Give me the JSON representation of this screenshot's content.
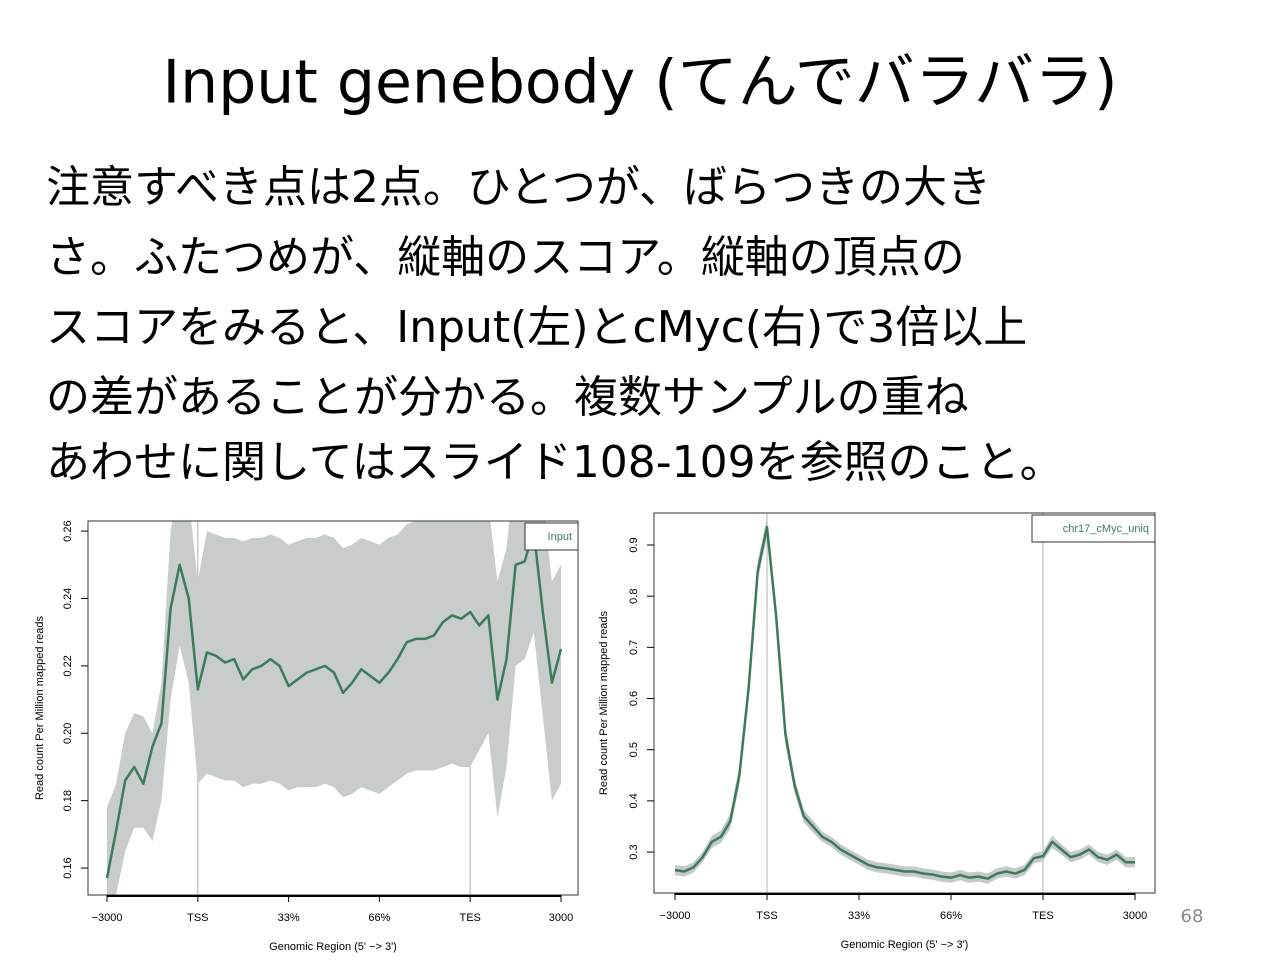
{
  "slide": {
    "title": "Input genebody (てんでバラバラ)",
    "body": [
      "注意すべき点は2点。ひとつが、ばらつきの大き",
      "さ。ふたつめが、縦軸のスコア。縦軸の頂点の",
      "スコアをみると、Input(左)とcMyc(右)で3倍以上",
      "の差があることが分かる。複数サンプルの重ね",
      "あわせに関してはスライド108-109を参照のこと。"
    ],
    "page_number": "68"
  },
  "chart_data": [
    {
      "type": "line",
      "x_label": "Genomic Region (5' −> 3')",
      "y_label": "Read count Per Million mapped reads",
      "categories": [
        "−3000",
        null,
        null,
        null,
        null,
        null,
        null,
        null,
        null,
        null,
        "TSS",
        null,
        null,
        null,
        null,
        null,
        null,
        null,
        null,
        null,
        "33%",
        null,
        null,
        null,
        null,
        null,
        null,
        null,
        null,
        null,
        "66%",
        null,
        null,
        null,
        null,
        null,
        null,
        null,
        null,
        null,
        "TES",
        null,
        null,
        null,
        null,
        null,
        null,
        null,
        null,
        null,
        "3000"
      ],
      "ylim": [
        0.152,
        0.263
      ],
      "yticks": [
        0.16,
        0.18,
        {
          "value": 0.2,
          "label": "0.20"
        },
        0.22,
        0.24,
        0.26
      ],
      "band_color": "#c8cdcb",
      "series": [
        {
          "name": "Input",
          "color": "#3d7a5c",
          "values": [
            0.157,
            0.171,
            0.186,
            0.19,
            0.185,
            0.196,
            0.203,
            0.237,
            0.25,
            0.24,
            0.213,
            0.224,
            0.223,
            0.221,
            0.222,
            0.216,
            0.219,
            0.22,
            0.222,
            0.22,
            0.214,
            0.216,
            0.218,
            0.219,
            0.22,
            0.218,
            0.212,
            0.215,
            0.219,
            0.217,
            0.215,
            0.218,
            0.222,
            0.227,
            0.228,
            0.228,
            0.229,
            0.233,
            0.235,
            0.234,
            0.236,
            0.232,
            0.235,
            0.21,
            0.222,
            0.25,
            0.251,
            0.26,
            0.236,
            0.215,
            0.225
          ],
          "lower": [
            0.15,
            0.152,
            0.165,
            0.172,
            0.172,
            0.168,
            0.18,
            0.21,
            0.226,
            0.215,
            0.185,
            0.188,
            0.187,
            0.186,
            0.186,
            0.184,
            0.185,
            0.185,
            0.186,
            0.185,
            0.183,
            0.184,
            0.184,
            0.184,
            0.185,
            0.184,
            0.181,
            0.182,
            0.184,
            0.183,
            0.182,
            0.184,
            0.186,
            0.188,
            0.189,
            0.189,
            0.189,
            0.19,
            0.191,
            0.19,
            0.19,
            0.195,
            0.2,
            0.175,
            0.19,
            0.22,
            0.222,
            0.23,
            0.205,
            0.18,
            0.185
          ],
          "upper": [
            0.178,
            0.185,
            0.2,
            0.206,
            0.205,
            0.2,
            0.215,
            0.26,
            0.275,
            0.27,
            0.245,
            0.26,
            0.259,
            0.258,
            0.258,
            0.257,
            0.258,
            0.258,
            0.259,
            0.258,
            0.256,
            0.257,
            0.258,
            0.258,
            0.259,
            0.258,
            0.255,
            0.256,
            0.258,
            0.257,
            0.256,
            0.258,
            0.259,
            0.262,
            0.263,
            0.263,
            0.264,
            0.266,
            0.268,
            0.267,
            0.275,
            0.265,
            0.268,
            0.245,
            0.255,
            0.28,
            0.282,
            0.29,
            0.27,
            0.245,
            0.25
          ]
        }
      ]
    },
    {
      "type": "line",
      "x_label": "Genomic Region (5' −> 3')",
      "y_label": "Read count Per Million mapped reads",
      "categories": [
        "−3000",
        null,
        null,
        null,
        null,
        null,
        null,
        null,
        null,
        null,
        "TSS",
        null,
        null,
        null,
        null,
        null,
        null,
        null,
        null,
        null,
        "33%",
        null,
        null,
        null,
        null,
        null,
        null,
        null,
        null,
        null,
        "66%",
        null,
        null,
        null,
        null,
        null,
        null,
        null,
        null,
        null,
        "TES",
        null,
        null,
        null,
        null,
        null,
        null,
        null,
        null,
        null,
        "3000"
      ],
      "ylim": [
        0.22,
        0.9625
      ],
      "yticks": [
        0.3,
        0.4,
        0.5,
        0.6,
        0.7,
        0.8,
        0.9
      ],
      "band_color": "#c5cac8",
      "series": [
        {
          "name": "chr17_cMyc_uniq",
          "color": "#3d7a5c",
          "values": [
            0.265,
            0.262,
            0.27,
            0.29,
            0.32,
            0.33,
            0.36,
            0.45,
            0.62,
            0.85,
            0.935,
            0.76,
            0.53,
            0.43,
            0.37,
            0.35,
            0.33,
            0.32,
            0.305,
            0.295,
            0.285,
            0.275,
            0.27,
            0.268,
            0.265,
            0.262,
            0.262,
            0.258,
            0.256,
            0.252,
            0.25,
            0.255,
            0.25,
            0.252,
            0.248,
            0.258,
            0.262,
            0.258,
            0.265,
            0.288,
            0.292,
            0.32,
            0.305,
            0.29,
            0.295,
            0.305,
            0.29,
            0.285,
            0.295,
            0.28,
            0.28
          ],
          "error": [
            0.01,
            0.01,
            0.01,
            0.01,
            0.012,
            0.012,
            0.015,
            0.02,
            0.02,
            0.02,
            0.02,
            0.02,
            0.02,
            0.015,
            0.012,
            0.012,
            0.01,
            0.01,
            0.01,
            0.01,
            0.01,
            0.01,
            0.01,
            0.01,
            0.01,
            0.01,
            0.01,
            0.01,
            0.01,
            0.01,
            0.01,
            0.01,
            0.01,
            0.01,
            0.01,
            0.01,
            0.01,
            0.01,
            0.01,
            0.01,
            0.01,
            0.012,
            0.01,
            0.01,
            0.01,
            0.01,
            0.01,
            0.01,
            0.01,
            0.01,
            0.01
          ]
        }
      ]
    }
  ]
}
